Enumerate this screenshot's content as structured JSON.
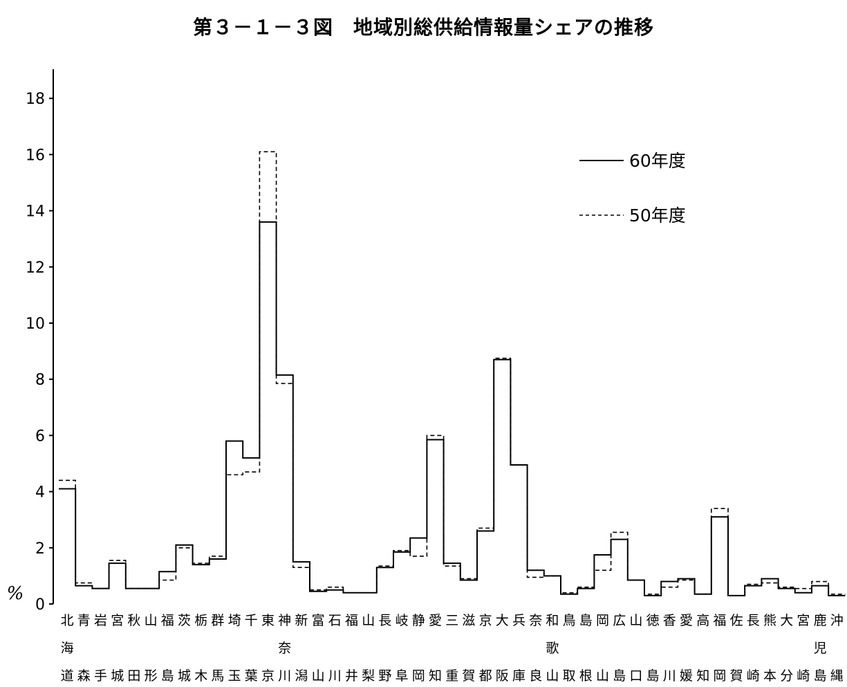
{
  "chart_data": {
    "type": "line",
    "title": "第３－１－３図　地域別総供給情報量シェアの推移",
    "ylabel": "%",
    "ylim": [
      0,
      19
    ],
    "yticks": [
      0,
      2,
      4,
      6,
      8,
      10,
      12,
      14,
      16,
      18
    ],
    "grid": false,
    "legend_position": "top-right",
    "categories": [
      [
        "北",
        "海",
        "道"
      ],
      [
        "青",
        "",
        "森"
      ],
      [
        "岩",
        "",
        "手"
      ],
      [
        "宮",
        "",
        "城"
      ],
      [
        "秋",
        "",
        "田"
      ],
      [
        "山",
        "",
        "形"
      ],
      [
        "福",
        "",
        "島"
      ],
      [
        "茨",
        "",
        "城"
      ],
      [
        "栃",
        "",
        "木"
      ],
      [
        "群",
        "",
        "馬"
      ],
      [
        "埼",
        "",
        "玉"
      ],
      [
        "千",
        "",
        "葉"
      ],
      [
        "東",
        "",
        "京"
      ],
      [
        "神",
        "奈",
        "川"
      ],
      [
        "新",
        "",
        "潟"
      ],
      [
        "富",
        "",
        "山"
      ],
      [
        "石",
        "",
        "川"
      ],
      [
        "福",
        "",
        "井"
      ],
      [
        "山",
        "",
        "梨"
      ],
      [
        "長",
        "",
        "野"
      ],
      [
        "岐",
        "",
        "阜"
      ],
      [
        "静",
        "",
        "岡"
      ],
      [
        "愛",
        "",
        "知"
      ],
      [
        "三",
        "",
        "重"
      ],
      [
        "滋",
        "",
        "賀"
      ],
      [
        "京",
        "",
        "都"
      ],
      [
        "大",
        "",
        "阪"
      ],
      [
        "兵",
        "",
        "庫"
      ],
      [
        "奈",
        "",
        "良"
      ],
      [
        "和",
        "歌",
        "山"
      ],
      [
        "鳥",
        "",
        "取"
      ],
      [
        "島",
        "",
        "根"
      ],
      [
        "岡",
        "",
        "山"
      ],
      [
        "広",
        "",
        "島"
      ],
      [
        "山",
        "",
        "口"
      ],
      [
        "徳",
        "",
        "島"
      ],
      [
        "香",
        "",
        "川"
      ],
      [
        "愛",
        "",
        "媛"
      ],
      [
        "高",
        "",
        "知"
      ],
      [
        "福",
        "",
        "岡"
      ],
      [
        "佐",
        "",
        "賀"
      ],
      [
        "長",
        "",
        "崎"
      ],
      [
        "熊",
        "",
        "本"
      ],
      [
        "大",
        "",
        "分"
      ],
      [
        "宮",
        "",
        "崎"
      ],
      [
        "鹿",
        "児",
        "島"
      ],
      [
        "沖",
        "",
        "縄"
      ]
    ],
    "series": [
      {
        "name": "60年度",
        "style": "solid",
        "values": [
          4.1,
          0.65,
          0.55,
          1.45,
          0.55,
          0.55,
          1.15,
          2.1,
          1.4,
          1.6,
          5.8,
          5.2,
          13.6,
          8.15,
          1.5,
          0.45,
          0.5,
          0.4,
          0.4,
          1.3,
          1.85,
          2.35,
          5.85,
          1.45,
          0.85,
          2.6,
          8.7,
          4.95,
          1.2,
          1.0,
          0.35,
          0.55,
          1.75,
          2.3,
          0.85,
          0.3,
          0.8,
          0.9,
          0.35,
          3.1,
          0.3,
          0.65,
          0.9,
          0.55,
          0.4,
          0.65,
          0.3
        ]
      },
      {
        "name": "50年度",
        "style": "dashed",
        "values": [
          4.4,
          0.75,
          0.55,
          1.55,
          0.55,
          0.55,
          0.85,
          2.0,
          1.45,
          1.7,
          4.6,
          4.7,
          16.1,
          7.85,
          1.3,
          0.5,
          0.6,
          0.4,
          0.4,
          1.35,
          1.9,
          1.7,
          6.0,
          1.35,
          0.9,
          2.7,
          8.75,
          4.95,
          0.95,
          1.0,
          0.4,
          0.6,
          1.2,
          2.55,
          0.85,
          0.35,
          0.6,
          0.85,
          0.35,
          3.4,
          0.3,
          0.7,
          0.75,
          0.6,
          0.55,
          0.8,
          0.35
        ]
      }
    ]
  },
  "colors": {
    "line": "#000000",
    "background": "#ffffff"
  }
}
